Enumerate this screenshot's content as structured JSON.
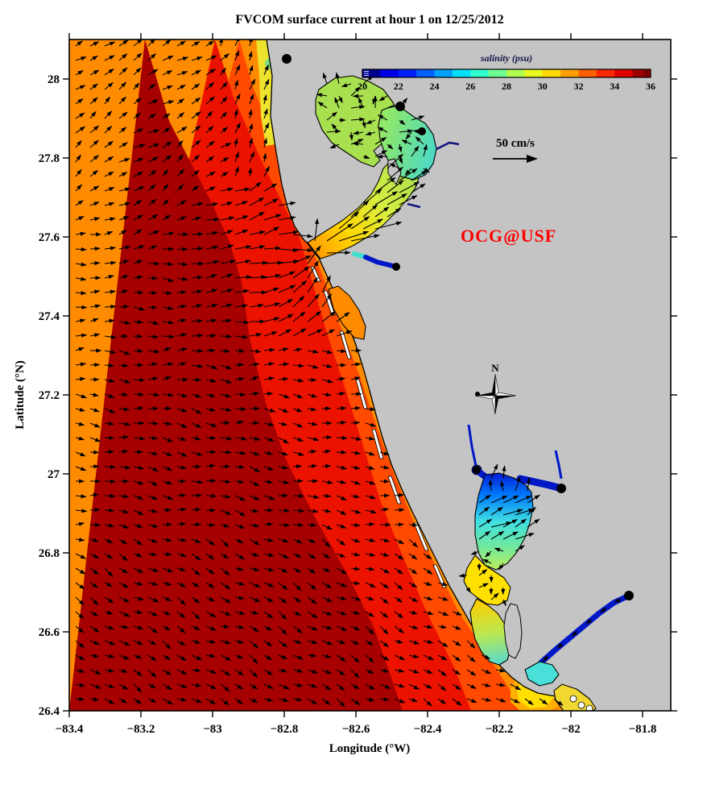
{
  "chart_data": {
    "type": "map",
    "title": "FVCOM surface current at hour 1 on 12/25/2012",
    "xlabel": "Longitude (°W)",
    "ylabel": "Latitude (°N)",
    "xlim": [
      -83.4,
      -81.72
    ],
    "ylim": [
      26.4,
      28.1
    ],
    "x_tick_labels": [
      "−83.4",
      "−83.2",
      "−83",
      "−82.8",
      "−82.6",
      "−82.4",
      "−82.2",
      "−82",
      "−81.8"
    ],
    "y_tick_labels": [
      "26.4",
      "26.6",
      "26.8",
      "27",
      "27.2",
      "27.4",
      "27.6",
      "27.8",
      "28"
    ],
    "grid": false,
    "colorbar": {
      "label": "salinity (psu)",
      "min": 20,
      "max": 36,
      "tick_labels": [
        "20",
        "22",
        "24",
        "26",
        "28",
        "30",
        "32",
        "34",
        "36"
      ],
      "colors": [
        "#000090",
        "#0000E8",
        "#0020FF",
        "#0060FF",
        "#00A0FF",
        "#00E0F8",
        "#30FFD0",
        "#70FF90",
        "#B0FF50",
        "#E8F820",
        "#FFD800",
        "#FFA000",
        "#FF6000",
        "#FF2800",
        "#E00000",
        "#9C0000"
      ]
    },
    "scale_legend": {
      "label": "50 cm/s",
      "value_cm_per_s": 50
    },
    "watermark": "OCG@USF",
    "compass_label": "N",
    "salinity_regions_psu": {
      "offshore_deep_gulf": 36,
      "outer_shelf": 35,
      "inner_shelf": 34,
      "nearshore": 33,
      "upper_coast_strip": 30,
      "old_tampa_bay": 30,
      "hillsborough_bay": 28,
      "mid_tampa_bay": 31,
      "lower_tampa_bay_mouth": 33,
      "manatee_river": 21,
      "sarasota_bay": 33,
      "upper_charlotte_harbor": 21,
      "mid_charlotte_harbor": 26,
      "lower_charlotte_harbor": 29,
      "peace_river": 20,
      "myakka_river": 20,
      "caloosahatchee_river": 20,
      "pine_island_sound": 29,
      "san_carlos_bay": 27,
      "estero_bay": 30
    },
    "stations_lonlat": [
      [
        -82.79,
        28.05
      ],
      [
        -82.48,
        27.93
      ],
      [
        -82.42,
        27.87
      ],
      [
        -82.49,
        27.52
      ],
      [
        -82.26,
        27.2
      ],
      [
        -82.26,
        27.01
      ],
      [
        -82.03,
        26.96
      ],
      [
        -81.84,
        26.69
      ]
    ],
    "vector_field": {
      "reference_speed_cm_per_s": 50,
      "grid_spacing_px": 18,
      "general_pattern": "eastward onshore flow over the shelf, veering NE north of Tampa Bay, SE to the south, strong radiating flood currents at the Tampa Bay mouth and northward flow inside Charlotte Harbor"
    }
  },
  "palette": {
    "land_gray": "#C4C4C4",
    "band_36": "#A60000",
    "band_35": "#EC1200",
    "band_34": "#FF4A00",
    "band_33": "#FF8C00",
    "coastal_yellow": "#EDE32E",
    "coastal_green": "#7CDE7C",
    "estuary_yellowgreen": "#A8E050",
    "estuary_cyan": "#48D8C8",
    "river_blue": "#0018C8",
    "harbor_darkblue": "#0000C8",
    "arrow_black": "#000000",
    "watermark_red": "#FF0000",
    "frame_black": "#000000"
  }
}
